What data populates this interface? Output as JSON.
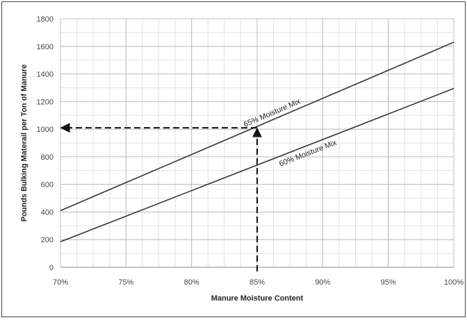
{
  "chart_data": {
    "type": "line",
    "title": "",
    "xlabel": "Manure Moisture Content",
    "ylabel": "Pounds Bulking Materail per Ton of Manure",
    "xlim": [
      70,
      100
    ],
    "ylim": [
      0,
      1800
    ],
    "grid": true,
    "x_ticks": [
      {
        "value": 70,
        "label": "70%"
      },
      {
        "value": 75,
        "label": "75%"
      },
      {
        "value": 80,
        "label": "80%"
      },
      {
        "value": 85,
        "label": "85%"
      },
      {
        "value": 90,
        "label": "90%"
      },
      {
        "value": 95,
        "label": "95%"
      },
      {
        "value": 100,
        "label": "100%"
      }
    ],
    "y_ticks": [
      {
        "value": 0,
        "label": "0"
      },
      {
        "value": 200,
        "label": "200"
      },
      {
        "value": 400,
        "label": "400"
      },
      {
        "value": 600,
        "label": "600"
      },
      {
        "value": 800,
        "label": "800"
      },
      {
        "value": 1000,
        "label": "1000"
      },
      {
        "value": 1200,
        "label": "1200"
      },
      {
        "value": 1400,
        "label": "1400"
      },
      {
        "value": 1600,
        "label": "1600"
      },
      {
        "value": 1800,
        "label": "1800"
      }
    ],
    "series": [
      {
        "name": "65% Moisture Mix",
        "x": [
          70,
          100
        ],
        "y": [
          410,
          1630
        ],
        "color": "#333333",
        "label_at": 84.2
      },
      {
        "name": "60% Moisture Mix",
        "x": [
          70,
          100
        ],
        "y": [
          185,
          1295
        ],
        "color": "#333333",
        "label_at": 86.5
      }
    ],
    "annotation": {
      "x": 85,
      "y": 1010,
      "style": "dashed-arrows"
    }
  }
}
